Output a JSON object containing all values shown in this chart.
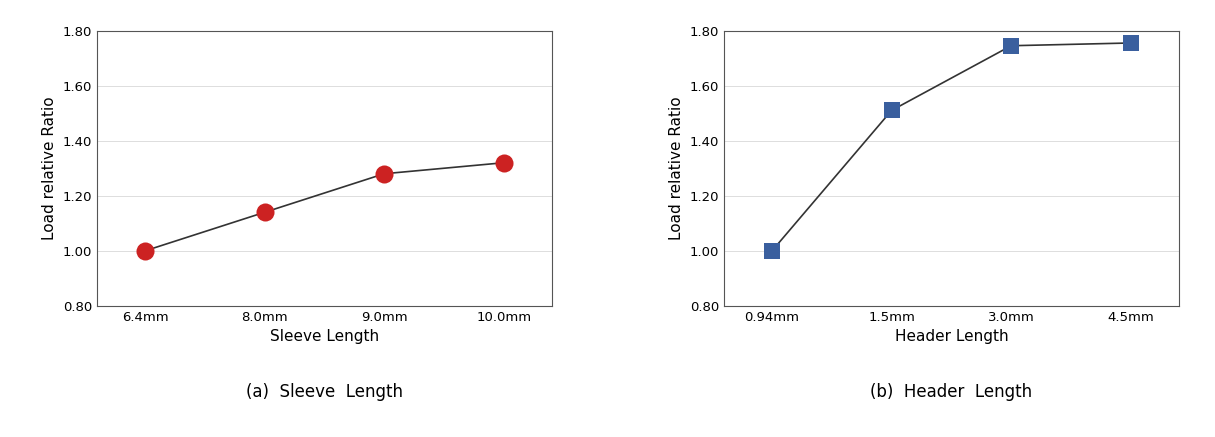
{
  "sleeve": {
    "x_labels": [
      "6.4mm",
      "8.0mm",
      "9.0mm",
      "10.0mm"
    ],
    "y_values": [
      1.0,
      1.14,
      1.28,
      1.32
    ],
    "xlabel": "Sleeve Length",
    "ylabel": "Load relative Ratio",
    "caption": "(a)  Sleeve  Length",
    "marker_color": "#cc2222",
    "marker": "o",
    "marker_size": 13
  },
  "header": {
    "x_labels": [
      "0.94mm",
      "1.5mm",
      "3.0mm",
      "4.5mm"
    ],
    "y_values": [
      1.0,
      1.51,
      1.745,
      1.755
    ],
    "xlabel": "Header Length",
    "ylabel": "Load relative Ratio",
    "caption": "(b)  Header  Length",
    "marker_color": "#3a5f9e",
    "marker": "s",
    "marker_size": 11
  },
  "ylim": [
    0.8,
    1.8
  ],
  "yticks": [
    0.8,
    1.0,
    1.2,
    1.4,
    1.6,
    1.8
  ],
  "line_color": "#333333",
  "line_width": 1.2,
  "background_color": "#ffffff",
  "caption_fontsize": 12,
  "axis_label_fontsize": 11,
  "tick_fontsize": 9.5
}
